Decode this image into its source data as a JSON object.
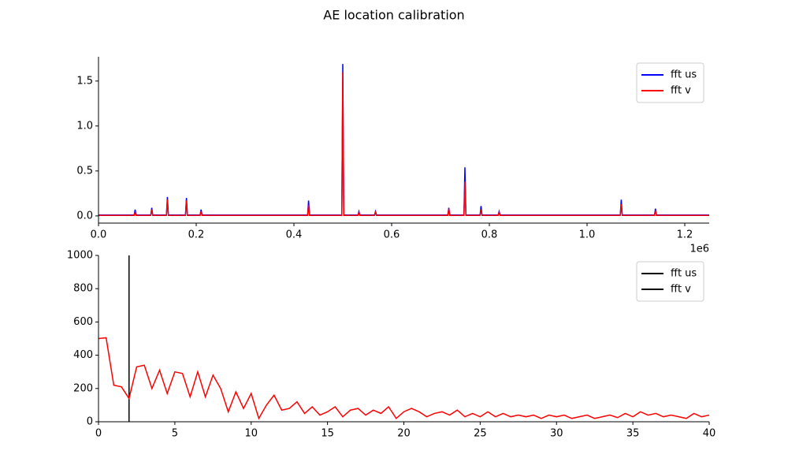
{
  "title": "AE location calibration",
  "chart_data": [
    {
      "type": "line",
      "legend": "upper right",
      "x_offset_label": "1e6",
      "xlim": [
        0,
        1.25
      ],
      "ylim": [
        -0.08,
        1.77
      ],
      "xticks": [
        {
          "value": 0,
          "label": "0.0"
        },
        0.2,
        0.4,
        0.6,
        0.8,
        {
          "value": 1,
          "label": "1.0"
        },
        1.2
      ],
      "yticks": [
        {
          "value": 0,
          "label": "0.0"
        },
        0.5,
        {
          "value": 1,
          "label": "1.0"
        },
        1.5
      ],
      "series": [
        {
          "name": "fft us",
          "color": "#0000ff",
          "x": [
            0,
            0.073,
            0.075,
            0.077,
            0.107,
            0.109,
            0.111,
            0.139,
            0.141,
            0.143,
            0.178,
            0.18,
            0.182,
            0.208,
            0.21,
            0.212,
            0.428,
            0.43,
            0.432,
            0.498,
            0.5,
            0.502,
            0.531,
            0.533,
            0.535,
            0.565,
            0.567,
            0.569,
            0.715,
            0.717,
            0.719,
            0.748,
            0.75,
            0.752,
            0.781,
            0.783,
            0.785,
            0.818,
            0.82,
            0.822,
            1.068,
            1.07,
            1.072,
            1.138,
            1.14,
            1.142,
            1.25
          ],
          "values": [
            0.01,
            0.01,
            0.07,
            0.01,
            0.01,
            0.09,
            0.01,
            0.01,
            0.21,
            0.01,
            0.01,
            0.2,
            0.01,
            0.01,
            0.07,
            0.01,
            0.01,
            0.17,
            0.01,
            0.01,
            1.69,
            0.01,
            0.01,
            0.05,
            0.01,
            0.01,
            0.05,
            0.01,
            0.01,
            0.09,
            0.01,
            0.01,
            0.54,
            0.01,
            0.01,
            0.11,
            0.01,
            0.01,
            0.05,
            0.01,
            0.01,
            0.18,
            0.01,
            0.01,
            0.08,
            0.01,
            0.01
          ]
        },
        {
          "name": "fft v",
          "color": "#ff0000",
          "x": [
            0,
            0.073,
            0.075,
            0.077,
            0.107,
            0.109,
            0.111,
            0.139,
            0.141,
            0.143,
            0.178,
            0.18,
            0.182,
            0.208,
            0.21,
            0.212,
            0.428,
            0.43,
            0.432,
            0.498,
            0.5,
            0.502,
            0.531,
            0.533,
            0.535,
            0.565,
            0.567,
            0.569,
            0.715,
            0.717,
            0.719,
            0.748,
            0.75,
            0.752,
            0.781,
            0.783,
            0.785,
            0.818,
            0.82,
            0.822,
            1.068,
            1.07,
            1.072,
            1.138,
            1.14,
            1.142,
            1.25
          ],
          "values": [
            0.005,
            0.005,
            0.04,
            0.005,
            0.005,
            0.07,
            0.005,
            0.005,
            0.18,
            0.005,
            0.005,
            0.17,
            0.005,
            0.005,
            0.05,
            0.005,
            0.005,
            0.12,
            0.005,
            0.005,
            1.6,
            0.005,
            0.005,
            0.04,
            0.005,
            0.005,
            0.04,
            0.005,
            0.005,
            0.08,
            0.005,
            0.005,
            0.38,
            0.005,
            0.005,
            0.07,
            0.005,
            0.005,
            0.04,
            0.005,
            0.005,
            0.13,
            0.005,
            0.005,
            0.06,
            0.005,
            0.005
          ]
        }
      ]
    },
    {
      "type": "line",
      "legend": "upper right",
      "xlim": [
        0,
        40
      ],
      "ylim": [
        0,
        1000
      ],
      "xticks": [
        0,
        5,
        10,
        15,
        20,
        25,
        30,
        35,
        40
      ],
      "yticks": [
        0,
        200,
        400,
        600,
        800,
        1000
      ],
      "series": [
        {
          "name": "fft us",
          "color": "#000000",
          "x": [
            2,
            2
          ],
          "values": [
            0,
            1000
          ]
        },
        {
          "name": "fft v",
          "color": "#ff0000",
          "legend_color": "#000000",
          "x": [
            0,
            0.5,
            1,
            1.5,
            2,
            2.5,
            3,
            3.5,
            4,
            4.5,
            5,
            5.5,
            6,
            6.5,
            7,
            7.5,
            8,
            8.5,
            9,
            9.5,
            10,
            10.5,
            11,
            11.5,
            12,
            12.5,
            13,
            13.5,
            14,
            14.5,
            15,
            15.5,
            16,
            16.5,
            17,
            17.5,
            18,
            18.5,
            19,
            19.5,
            20,
            20.5,
            21,
            21.5,
            22,
            22.5,
            23,
            23.5,
            24,
            24.5,
            25,
            25.5,
            26,
            26.5,
            27,
            27.5,
            28,
            28.5,
            29,
            29.5,
            30,
            30.5,
            31,
            31.5,
            32,
            32.5,
            33,
            33.5,
            34,
            34.5,
            35,
            35.5,
            36,
            36.5,
            37,
            37.5,
            38,
            38.5,
            39,
            39.5,
            40
          ],
          "values": [
            500,
            505,
            220,
            210,
            140,
            330,
            340,
            200,
            310,
            170,
            300,
            290,
            150,
            300,
            150,
            280,
            200,
            60,
            180,
            80,
            170,
            20,
            100,
            160,
            70,
            80,
            120,
            50,
            90,
            40,
            60,
            90,
            30,
            70,
            80,
            40,
            70,
            50,
            90,
            20,
            60,
            80,
            60,
            30,
            50,
            60,
            40,
            70,
            30,
            50,
            30,
            60,
            30,
            50,
            30,
            40,
            30,
            40,
            20,
            40,
            30,
            40,
            20,
            30,
            40,
            20,
            30,
            40,
            25,
            50,
            30,
            60,
            40,
            50,
            30,
            40,
            30,
            20,
            50,
            30,
            40
          ]
        }
      ]
    }
  ]
}
